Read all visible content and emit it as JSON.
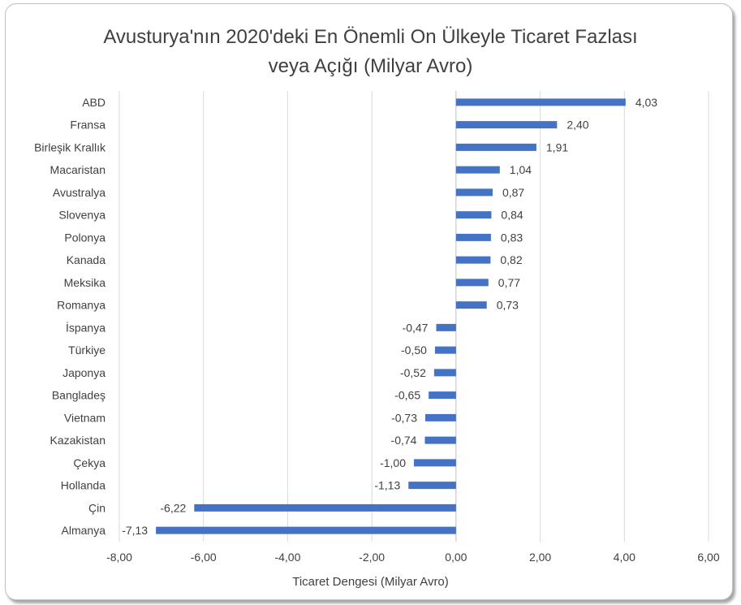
{
  "chart_data": {
    "type": "bar",
    "orientation": "horizontal",
    "title_line1": "Avusturya'nın 2020'deki En Önemli On Ülkeyle Ticaret Fazlası",
    "title_line2": "veya Açığı (Milyar Avro)",
    "xlabel": "Ticaret Dengesi (Milyar Avro)",
    "ylabel": "",
    "xlim": [
      -8,
      6
    ],
    "xticks": [
      -8,
      -6,
      -4,
      -2,
      0,
      2,
      4,
      6
    ],
    "xtick_labels": [
      "-8,00",
      "-6,00",
      "-4,00",
      "-2,00",
      "0,00",
      "2,00",
      "4,00",
      "6,00"
    ],
    "grid": "vertical",
    "legend": "none",
    "bar_color": "#4472c4",
    "categories": [
      "ABD",
      "Fransa",
      "Birleşik Krallık",
      "Macaristan",
      "Avustralya",
      "Slovenya",
      "Polonya",
      "Kanada",
      "Meksika",
      "Romanya",
      "İspanya",
      "Türkiye",
      "Japonya",
      "Bangladeş",
      "Vietnam",
      "Kazakistan",
      "Çekya",
      "Hollanda",
      "Çin",
      "Almanya"
    ],
    "values": [
      4.03,
      2.4,
      1.91,
      1.04,
      0.87,
      0.84,
      0.83,
      0.82,
      0.77,
      0.73,
      -0.47,
      -0.5,
      -0.52,
      -0.65,
      -0.73,
      -0.74,
      -1.0,
      -1.13,
      -6.22,
      -7.13
    ],
    "value_labels": [
      "4,03",
      "2,40",
      "1,91",
      "1,04",
      "0,87",
      "0,84",
      "0,83",
      "0,82",
      "0,77",
      "0,73",
      "-0,47",
      "-0,50",
      "-0,52",
      "-0,65",
      "-0,73",
      "-0,74",
      "-1,00",
      "-1,13",
      "-6,22",
      "-7,13"
    ]
  }
}
